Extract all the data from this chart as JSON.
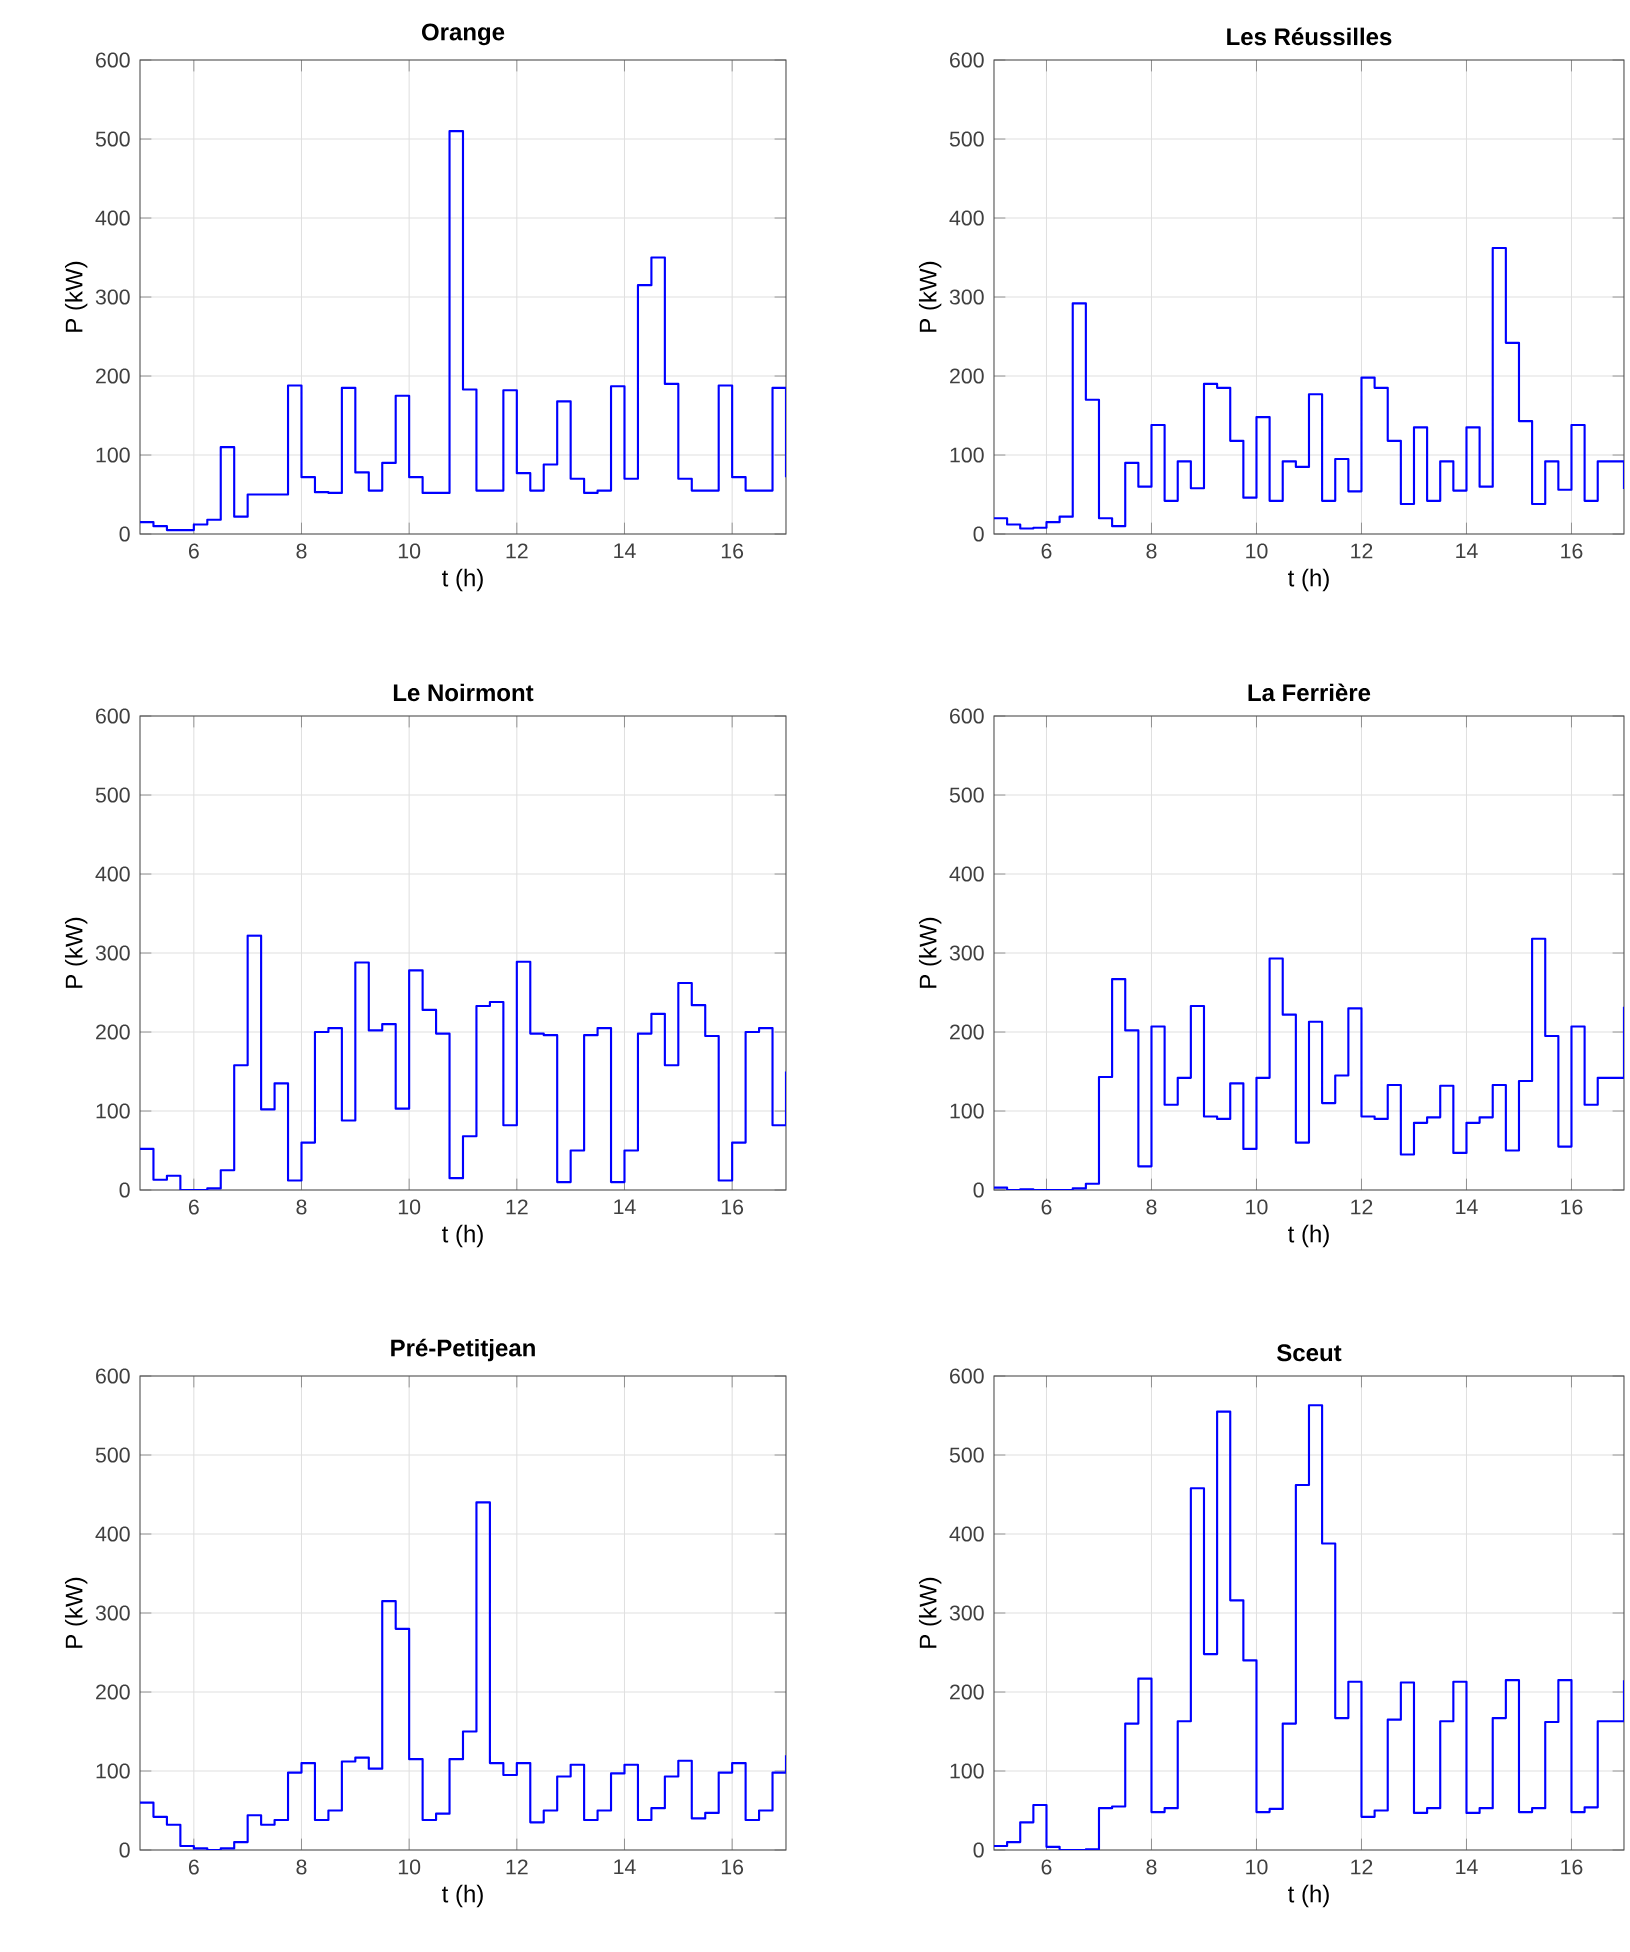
{
  "chart_data": [
    {
      "type": "step",
      "title": "Orange",
      "xlabel": "t (h)",
      "ylabel": "P (kW)",
      "color": "#0000ff",
      "xlim": [
        5,
        17
      ],
      "ylim": [
        0,
        600
      ],
      "xticks": [
        6,
        8,
        10,
        12,
        14,
        16
      ],
      "yticks": [
        0,
        100,
        200,
        300,
        400,
        500,
        600
      ],
      "grid": true,
      "x": [
        5,
        5.25,
        5.5,
        5.75,
        6,
        6.25,
        6.5,
        6.75,
        7,
        7.25,
        7.5,
        7.75,
        8,
        8.25,
        8.5,
        8.75,
        9,
        9.25,
        9.5,
        9.75,
        10,
        10.25,
        10.5,
        10.75,
        11,
        11.25,
        11.5,
        11.75,
        12,
        12.25,
        12.5,
        12.75,
        13,
        13.25,
        13.5,
        13.75,
        14,
        14.25,
        14.5,
        14.75,
        15,
        15.25,
        15.5,
        15.75,
        16,
        16.25,
        16.5,
        16.75,
        17
      ],
      "values": [
        15,
        10,
        5,
        5,
        12,
        18,
        110,
        22,
        50,
        50,
        50,
        188,
        72,
        53,
        52,
        185,
        78,
        55,
        90,
        175,
        72,
        52,
        52,
        510,
        183,
        55,
        55,
        182,
        77,
        55,
        88,
        168,
        70,
        52,
        55,
        187,
        70,
        315,
        350,
        190,
        70,
        55,
        55,
        188,
        72,
        55,
        55,
        185,
        72
      ]
    },
    {
      "type": "step",
      "title": "Les Réussilles",
      "xlabel": "t (h)",
      "ylabel": "P (kW)",
      "color": "#0000ff",
      "xlim": [
        5,
        17
      ],
      "ylim": [
        0,
        600
      ],
      "xticks": [
        6,
        8,
        10,
        12,
        14,
        16
      ],
      "yticks": [
        0,
        100,
        200,
        300,
        400,
        500,
        600
      ],
      "grid": true,
      "x": [
        5,
        5.25,
        5.5,
        5.75,
        6,
        6.25,
        6.5,
        6.75,
        7,
        7.25,
        7.5,
        7.75,
        8,
        8.25,
        8.5,
        8.75,
        9,
        9.25,
        9.5,
        9.75,
        10,
        10.25,
        10.5,
        10.75,
        11,
        11.25,
        11.5,
        11.75,
        12,
        12.25,
        12.5,
        12.75,
        13,
        13.25,
        13.5,
        13.75,
        14,
        14.25,
        14.5,
        14.75,
        15,
        15.25,
        15.5,
        15.75,
        16,
        16.25,
        16.5,
        16.75,
        17
      ],
      "values": [
        20,
        12,
        7,
        8,
        15,
        22,
        292,
        170,
        20,
        10,
        90,
        60,
        138,
        42,
        92,
        58,
        190,
        185,
        118,
        46,
        148,
        42,
        92,
        85,
        177,
        42,
        95,
        54,
        198,
        185,
        118,
        38,
        135,
        42,
        92,
        55,
        135,
        60,
        362,
        242,
        143,
        38,
        92,
        56,
        138,
        42,
        92,
        92,
        57
      ]
    },
    {
      "type": "step",
      "title": "Le Noirmont",
      "xlabel": "t (h)",
      "ylabel": "P (kW)",
      "color": "#0000ff",
      "xlim": [
        5,
        17
      ],
      "ylim": [
        0,
        600
      ],
      "xticks": [
        6,
        8,
        10,
        12,
        14,
        16
      ],
      "yticks": [
        0,
        100,
        200,
        300,
        400,
        500,
        600
      ],
      "grid": true,
      "x": [
        5,
        5.25,
        5.5,
        5.75,
        6,
        6.25,
        6.5,
        6.75,
        7,
        7.25,
        7.5,
        7.75,
        8,
        8.25,
        8.5,
        8.75,
        9,
        9.25,
        9.5,
        9.75,
        10,
        10.25,
        10.5,
        10.75,
        11,
        11.25,
        11.5,
        11.75,
        12,
        12.25,
        12.5,
        12.75,
        13,
        13.25,
        13.5,
        13.75,
        14,
        14.25,
        14.5,
        14.75,
        15,
        15.25,
        15.5,
        15.75,
        16,
        16.25,
        16.5,
        16.75,
        17
      ],
      "values": [
        52,
        13,
        18,
        0,
        0,
        2,
        25,
        158,
        322,
        102,
        135,
        12,
        60,
        200,
        205,
        88,
        288,
        202,
        210,
        103,
        278,
        228,
        198,
        15,
        68,
        233,
        238,
        82,
        289,
        198,
        196,
        10,
        50,
        196,
        205,
        10,
        50,
        198,
        223,
        158,
        262,
        234,
        195,
        12,
        60,
        200,
        205,
        82,
        150
      ]
    },
    {
      "type": "step",
      "title": "La Ferrière",
      "xlabel": "t (h)",
      "ylabel": "P (kW)",
      "color": "#0000ff",
      "xlim": [
        5,
        17
      ],
      "ylim": [
        0,
        600
      ],
      "xticks": [
        6,
        8,
        10,
        12,
        14,
        16
      ],
      "yticks": [
        0,
        100,
        200,
        300,
        400,
        500,
        600
      ],
      "grid": true,
      "x": [
        5,
        5.25,
        5.5,
        5.75,
        6,
        6.25,
        6.5,
        6.75,
        7,
        7.25,
        7.5,
        7.75,
        8,
        8.25,
        8.5,
        8.75,
        9,
        9.25,
        9.5,
        9.75,
        10,
        10.25,
        10.5,
        10.75,
        11,
        11.25,
        11.5,
        11.75,
        12,
        12.25,
        12.5,
        12.75,
        13,
        13.25,
        13.5,
        13.75,
        14,
        14.25,
        14.5,
        14.75,
        15,
        15.25,
        15.5,
        15.75,
        16,
        16.25,
        16.5,
        16.75,
        17
      ],
      "values": [
        3,
        0,
        1,
        0,
        0,
        0,
        2,
        8,
        143,
        267,
        202,
        30,
        207,
        108,
        142,
        233,
        93,
        90,
        135,
        52,
        142,
        293,
        222,
        60,
        213,
        110,
        145,
        230,
        93,
        90,
        133,
        45,
        85,
        92,
        132,
        47,
        85,
        92,
        133,
        50,
        138,
        318,
        195,
        55,
        207,
        108,
        142,
        142,
        232
      ]
    },
    {
      "type": "step",
      "title": "Pré-Petitjean",
      "xlabel": "t (h)",
      "ylabel": "P (kW)",
      "color": "#0000ff",
      "xlim": [
        5,
        17
      ],
      "ylim": [
        0,
        600
      ],
      "xticks": [
        6,
        8,
        10,
        12,
        14,
        16
      ],
      "yticks": [
        0,
        100,
        200,
        300,
        400,
        500,
        600
      ],
      "grid": true,
      "x": [
        5,
        5.25,
        5.5,
        5.75,
        6,
        6.25,
        6.5,
        6.75,
        7,
        7.25,
        7.5,
        7.75,
        8,
        8.25,
        8.5,
        8.75,
        9,
        9.25,
        9.5,
        9.75,
        10,
        10.25,
        10.5,
        10.75,
        11,
        11.25,
        11.5,
        11.75,
        12,
        12.25,
        12.5,
        12.75,
        13,
        13.25,
        13.5,
        13.75,
        14,
        14.25,
        14.5,
        14.75,
        15,
        15.25,
        15.5,
        15.75,
        16,
        16.25,
        16.5,
        16.75,
        17
      ],
      "values": [
        60,
        42,
        32,
        5,
        2,
        0,
        2,
        10,
        44,
        32,
        38,
        98,
        110,
        38,
        50,
        112,
        117,
        103,
        315,
        280,
        115,
        38,
        46,
        115,
        150,
        440,
        110,
        95,
        110,
        35,
        50,
        93,
        108,
        38,
        50,
        97,
        108,
        38,
        53,
        93,
        113,
        40,
        47,
        98,
        110,
        38,
        50,
        98,
        120
      ]
    },
    {
      "type": "step",
      "title": "Sceut",
      "xlabel": "t (h)",
      "ylabel": "P (kW)",
      "color": "#0000ff",
      "xlim": [
        5,
        17
      ],
      "ylim": [
        0,
        600
      ],
      "xticks": [
        6,
        8,
        10,
        12,
        14,
        16
      ],
      "yticks": [
        0,
        100,
        200,
        300,
        400,
        500,
        600
      ],
      "grid": true,
      "x": [
        5,
        5.25,
        5.5,
        5.75,
        6,
        6.25,
        6.5,
        6.75,
        7,
        7.25,
        7.5,
        7.75,
        8,
        8.25,
        8.5,
        8.75,
        9,
        9.25,
        9.5,
        9.75,
        10,
        10.25,
        10.5,
        10.75,
        11,
        11.25,
        11.5,
        11.75,
        12,
        12.25,
        12.5,
        12.75,
        13,
        13.25,
        13.5,
        13.75,
        14,
        14.25,
        14.5,
        14.75,
        15,
        15.25,
        15.5,
        15.75,
        16,
        16.25,
        16.5,
        16.75,
        17
      ],
      "values": [
        5,
        10,
        35,
        57,
        4,
        0,
        0,
        1,
        53,
        55,
        160,
        217,
        48,
        53,
        163,
        458,
        248,
        555,
        316,
        240,
        48,
        52,
        160,
        462,
        563,
        388,
        167,
        213,
        42,
        50,
        165,
        212,
        47,
        53,
        163,
        213,
        47,
        53,
        167,
        215,
        48,
        53,
        162,
        215,
        48,
        54,
        163,
        163,
        215
      ]
    }
  ]
}
